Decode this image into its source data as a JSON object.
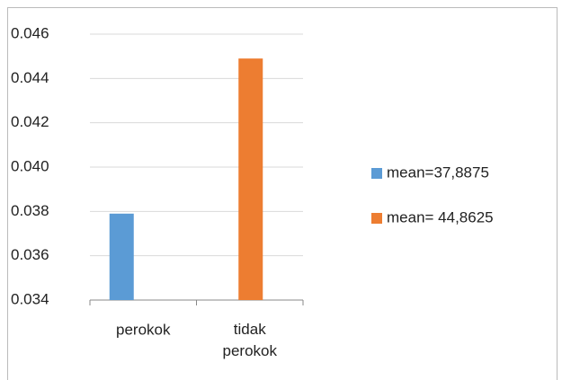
{
  "chart_data": {
    "type": "bar",
    "categories": [
      "perokok",
      "tidak perokok"
    ],
    "series": [
      {
        "name": "mean=37,8875",
        "color": "#5b9bd5",
        "values": [
          0.0379,
          null
        ]
      },
      {
        "name": "mean= 44,8625",
        "color": "#ed7d31",
        "values": [
          null,
          0.0449
        ]
      }
    ],
    "ylim": [
      0.034,
      0.046
    ],
    "yticks": [
      0.034,
      0.036,
      0.038,
      {
        "value": 0.04,
        "label": "0.040"
      },
      0.042,
      0.044,
      0.046
    ],
    "grid": true,
    "legend": "right"
  }
}
